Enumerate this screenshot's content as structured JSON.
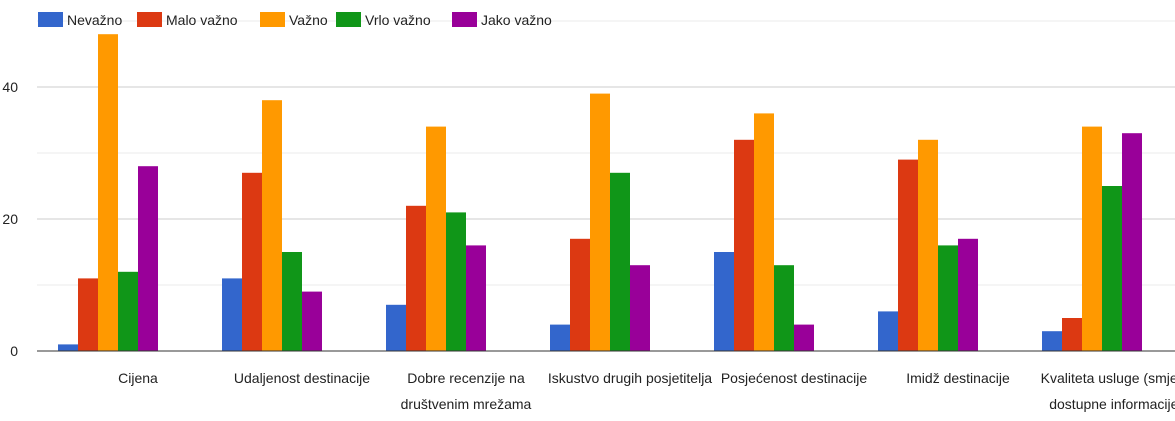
{
  "chart_data": {
    "type": "bar",
    "categories": [
      [
        "Cijena"
      ],
      [
        "Udaljenost destinacije"
      ],
      [
        "Dobre recenzije na",
        "društvenim mrežama"
      ],
      [
        "Iskustvo drugih posjetitelja"
      ],
      [
        "Posjećenost destinacije"
      ],
      [
        "Imidž destinacije"
      ],
      [
        "Kvaliteta usluge (smještaj,",
        "dostupne informacije...)"
      ]
    ],
    "series": [
      {
        "name": "Nevažno",
        "color": "#3366cc",
        "values": [
          1,
          11,
          7,
          4,
          15,
          6,
          3
        ]
      },
      {
        "name": "Malo važno",
        "color": "#dc3912",
        "values": [
          11,
          27,
          22,
          17,
          32,
          29,
          5
        ]
      },
      {
        "name": "Važno",
        "color": "#ff9900",
        "values": [
          48,
          38,
          34,
          39,
          36,
          32,
          34
        ]
      },
      {
        "name": "Vrlo važno",
        "color": "#109618",
        "values": [
          12,
          15,
          21,
          27,
          13,
          16,
          25
        ]
      },
      {
        "name": "Jako važno",
        "color": "#990099",
        "values": [
          28,
          9,
          16,
          13,
          4,
          17,
          33
        ]
      }
    ],
    "yticks": [
      0,
      20,
      40
    ],
    "ylim": [
      0,
      50
    ],
    "grid": true,
    "legend_position": "top-left"
  }
}
